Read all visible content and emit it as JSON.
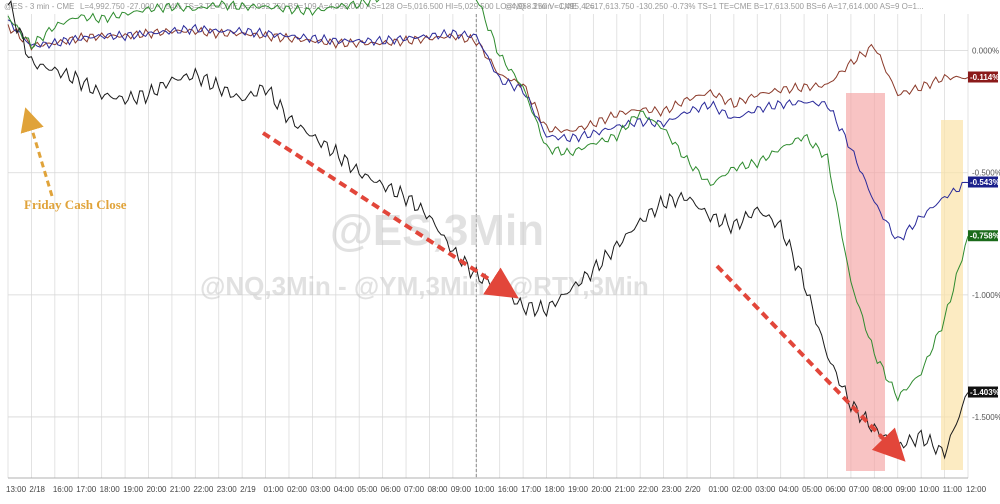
{
  "header": {
    "left_symbol": "@ES - 3 min - CME",
    "left_fields": [
      "L=4,992.750",
      "-27.000",
      "-0.54%",
      "TS=3",
      "TE=CME",
      "B=4,992.750",
      "BS=109",
      "A=4,993.000",
      "AS=128",
      "O=5,016.500",
      "HI=5,029.500",
      "LO=4,968.250",
      "V=1,495,426"
    ],
    "right_symbol": "@NQ - 3 min - CME",
    "right_fields": [
      "L=17,613.750",
      "-130.250",
      "-0.73%",
      "TS=1",
      "TE=CME",
      "B=17,613.500",
      "BS=6",
      "A=17,614.000",
      "AS=9",
      "O=1..."
    ]
  },
  "watermark": {
    "main": "@ES,3Min",
    "sub": "@NQ,3Min - @YM,3Min - @RTY,3Min"
  },
  "annotation": {
    "text": "Friday Cash Close"
  },
  "value_badges": [
    {
      "label": "-0.114%",
      "color": "#8b1a1a"
    },
    {
      "label": "-0.543%",
      "color": "#1a1f8b"
    },
    {
      "label": "-0.758%",
      "color": "#1a6b1a"
    },
    {
      "label": "-1.403%",
      "color": "#111111"
    }
  ],
  "colors": {
    "es": "#8b3a2a",
    "nq": "#2a2a9a",
    "ym": "#2e8b2e",
    "rty": "#1a1a1a",
    "arrow": "#e2463a",
    "highlight_red": "#f5a3a3",
    "highlight_yellow": "#fbe3a8",
    "annotation": "#e0a33a"
  },
  "chart_data": {
    "type": "line",
    "title": "",
    "xlabel": "",
    "ylabel": "",
    "ylim": [
      -1.75,
      0.15
    ],
    "yticks": [
      0.0,
      -0.5,
      -1.0,
      -1.5
    ],
    "ytick_labels": [
      "0.000%",
      "-0.500%",
      "-1.000%",
      "-1.500%"
    ],
    "x_labels": [
      "13:00",
      "2/18",
      "16:00",
      "17:00",
      "18:00",
      "19:00",
      "20:00",
      "21:00",
      "22:00",
      "23:00",
      "2/19",
      "01:00",
      "02:00",
      "03:00",
      "04:00",
      "05:00",
      "06:00",
      "07:00",
      "08:00",
      "09:00",
      "10:00",
      "16:00",
      "17:00",
      "18:00",
      "19:00",
      "20:00",
      "21:00",
      "22:00",
      "23:00",
      "2/20",
      "01:00",
      "02:00",
      "03:00",
      "04:00",
      "05:00",
      "06:00",
      "07:00",
      "08:00",
      "09:00",
      "10:00",
      "11:00",
      "12:00"
    ],
    "x": [
      0,
      1,
      2,
      3,
      4,
      5,
      6,
      7,
      8,
      9,
      10,
      11,
      12,
      13,
      14,
      15,
      16,
      17,
      18,
      19,
      20,
      21,
      22,
      23,
      24,
      25,
      26,
      27,
      28,
      29,
      30,
      31,
      32,
      33,
      34,
      35,
      36,
      37,
      38,
      39,
      40,
      41
    ],
    "series": [
      {
        "name": "@ES",
        "values": [
          0.1,
          0.02,
          0.03,
          0.05,
          0.06,
          0.06,
          0.07,
          0.08,
          0.08,
          0.07,
          0.07,
          0.06,
          0.05,
          0.04,
          0.03,
          0.03,
          0.03,
          0.04,
          0.05,
          0.06,
          0.04,
          -0.1,
          -0.14,
          -0.32,
          -0.33,
          -0.3,
          -0.26,
          -0.24,
          -0.25,
          -0.2,
          -0.17,
          -0.22,
          -0.18,
          -0.16,
          -0.15,
          -0.14,
          -0.05,
          0.02,
          -0.18,
          -0.15,
          -0.11,
          -0.11
        ]
      },
      {
        "name": "@NQ",
        "values": [
          0.12,
          0.02,
          0.03,
          0.05,
          0.06,
          0.06,
          0.07,
          0.08,
          0.09,
          0.08,
          0.08,
          0.07,
          0.06,
          0.05,
          0.04,
          0.04,
          0.04,
          0.05,
          0.06,
          0.07,
          0.06,
          -0.12,
          -0.16,
          -0.35,
          -0.36,
          -0.34,
          -0.31,
          -0.29,
          -0.3,
          -0.25,
          -0.22,
          -0.28,
          -0.24,
          -0.22,
          -0.21,
          -0.22,
          -0.4,
          -0.62,
          -0.78,
          -0.68,
          -0.6,
          -0.54
        ]
      },
      {
        "name": "@YM",
        "values": [
          0.14,
          0.02,
          0.1,
          0.14,
          0.13,
          0.15,
          0.17,
          0.18,
          0.17,
          0.19,
          0.18,
          0.18,
          0.17,
          0.16,
          0.18,
          0.19,
          0.22,
          0.28,
          0.3,
          0.22,
          0.22,
          -0.02,
          -0.15,
          -0.4,
          -0.42,
          -0.38,
          -0.35,
          -0.25,
          -0.32,
          -0.45,
          -0.55,
          -0.48,
          -0.46,
          -0.4,
          -0.35,
          -0.44,
          -0.95,
          -1.24,
          -1.42,
          -1.32,
          -1.1,
          -0.76
        ]
      },
      {
        "name": "@RTY",
        "values": [
          0.2,
          -0.05,
          -0.08,
          -0.12,
          -0.18,
          -0.2,
          -0.18,
          -0.12,
          -0.1,
          -0.15,
          -0.2,
          -0.15,
          -0.28,
          -0.35,
          -0.42,
          -0.5,
          -0.55,
          -0.6,
          -0.68,
          -0.82,
          -0.92,
          -0.97,
          -1.05,
          -1.06,
          -0.98,
          -0.9,
          -0.8,
          -0.7,
          -0.62,
          -0.6,
          -0.68,
          -0.72,
          -0.65,
          -0.72,
          -0.95,
          -1.25,
          -1.45,
          -1.55,
          -1.62,
          -1.58,
          -1.65,
          -1.4
        ]
      }
    ],
    "grid": true,
    "legend": "none"
  }
}
